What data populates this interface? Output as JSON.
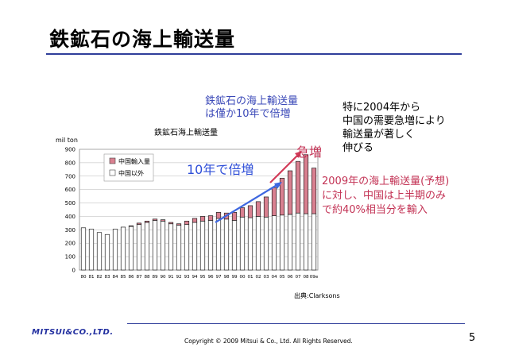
{
  "slide": {
    "title": "鉄鉱石の海上輸送量",
    "callout_top": [
      "鉄鉱石の海上輸送量",
      "は僅か10年で倍増"
    ],
    "callout_right": [
      "特に2004年から",
      "中国の需要急増により",
      "輸送量が著しく",
      "伸びる"
    ],
    "callout_red": [
      "2009年の海上輸送量(予想)",
      "に対し、中国は上半期のみ",
      "で約40%相当分を輸入"
    ],
    "note_10yr": "10年で倍増",
    "note_surge": "急増",
    "source": "出典:Clarksons",
    "copyright": "Copyright © 2009 Mitsui & Co., Ltd. All Rights Reserved.",
    "logo": "MITSUI&CO.,LTD.",
    "page_number": "5",
    "colors": {
      "title_rule": "#2f3e9a",
      "callout_blue": "#3b49b8",
      "arrow_blue": "#3e67e0",
      "arrow_red": "#d23a58",
      "china_bar": "#d98090",
      "other_bar": "#ffffff"
    }
  },
  "chart_data": {
    "type": "bar",
    "stacked": true,
    "title": "鉄鉱石海上輸送量",
    "ylabel": "mil ton",
    "xlabel": "",
    "ylim": [
      0,
      900
    ],
    "yticks": [
      0,
      100,
      200,
      300,
      400,
      500,
      600,
      700,
      800,
      900
    ],
    "grid": true,
    "legend_position": "top-left",
    "categories": [
      "80",
      "81",
      "82",
      "83",
      "84",
      "85",
      "86",
      "87",
      "88",
      "89",
      "90",
      "91",
      "92",
      "93",
      "94",
      "95",
      "96",
      "97",
      "98",
      "99",
      "00",
      "01",
      "02",
      "03",
      "04",
      "05",
      "06",
      "07",
      "08",
      "09e"
    ],
    "series": [
      {
        "name": "中国以外",
        "values": [
          315,
          305,
          280,
          265,
          305,
          320,
          325,
          340,
          355,
          370,
          365,
          345,
          335,
          340,
          355,
          365,
          370,
          385,
          380,
          370,
          395,
          390,
          400,
          395,
          405,
          410,
          415,
          425,
          420,
          420
        ]
      },
      {
        "name": "中国輸入量",
        "values": [
          0,
          0,
          0,
          0,
          0,
          0,
          5,
          10,
          10,
          10,
          10,
          10,
          10,
          25,
          30,
          35,
          35,
          45,
          45,
          60,
          70,
          90,
          110,
          150,
          210,
          275,
          325,
          385,
          440,
          340
        ]
      }
    ]
  }
}
